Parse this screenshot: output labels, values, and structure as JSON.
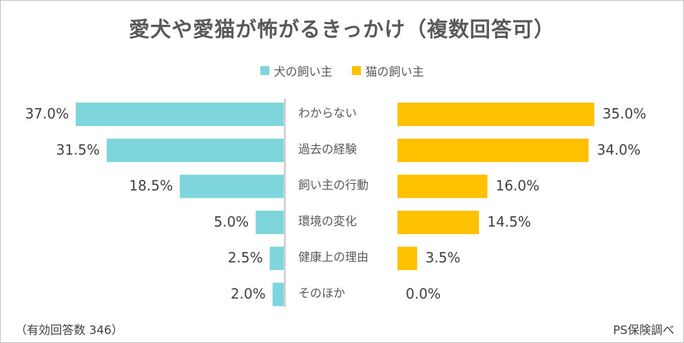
{
  "footnote": {
    "sample": "（有効回答数 346）",
    "source": "PS保険調べ"
  },
  "colors": {
    "dog": "#7fd5dc",
    "cat": "#ffc000",
    "axis": "#bfbfbf"
  },
  "chart_data": {
    "type": "bar",
    "title": "愛犬や愛猫が怖がるきっかけ（複数回答可）",
    "categories": [
      "わからない",
      "過去の経験",
      "飼い主の行動",
      "環境の変化",
      "健康上の理由",
      "そのほか"
    ],
    "series": [
      {
        "name": "犬の飼い主",
        "values": [
          37.0,
          31.5,
          18.5,
          5.0,
          2.5,
          2.0
        ],
        "labels": [
          "37.0%",
          "31.5%",
          "18.5%",
          "5.0%",
          "2.5%",
          "2.0%"
        ]
      },
      {
        "name": "猫の飼い主",
        "values": [
          35.0,
          34.0,
          16.0,
          14.5,
          3.5,
          0.0
        ],
        "labels": [
          "35.0%",
          "34.0%",
          "16.0%",
          "14.5%",
          "3.5%",
          "0.0%"
        ]
      }
    ],
    "legend_position": "top-center",
    "value_unit": "%"
  }
}
